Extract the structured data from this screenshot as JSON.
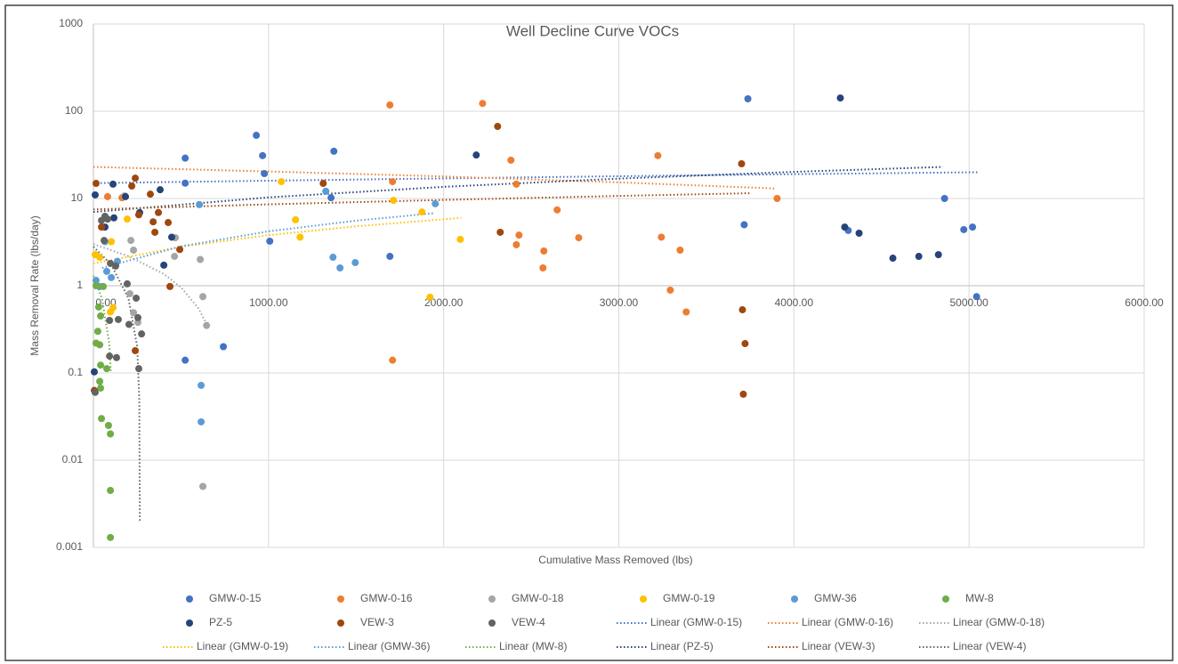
{
  "chart_data": {
    "type": "scatter",
    "title": "Well Decline Curve VOCs",
    "x_label": "Cumulative Mass Removed (lbs)",
    "y_label": "Mass Removal Rate (lbs/day)",
    "log_y": true,
    "grid": true,
    "legend": "bottom",
    "xlim": [
      0,
      6000
    ],
    "xticks": [
      {
        "value": 0,
        "label": "0.00"
      },
      {
        "value": 1000,
        "label": "1000.00"
      },
      {
        "value": 2000,
        "label": "2000.00"
      },
      {
        "value": 3000,
        "label": "3000.00"
      },
      {
        "value": 4000,
        "label": "4000.00"
      },
      {
        "value": 5000,
        "label": "5000.00"
      },
      {
        "value": 6000,
        "label": "6000.00"
      }
    ],
    "ylim": [
      0.001,
      1000
    ],
    "yticks": [
      0.001,
      0.01,
      0.1,
      1,
      10,
      100,
      1000
    ],
    "series": [
      {
        "name": "GMW-0-15",
        "color": "#4472c4",
        "x": [
          930,
          966,
          976,
          524,
          524,
          1373,
          1357,
          1007,
          1693,
          524,
          742,
          3737,
          3716,
          4310,
          4860,
          4970,
          5020,
          5043
        ],
        "values": [
          53,
          31,
          19.3,
          29,
          15,
          34.8,
          10.2,
          3.24,
          2.17,
          0.14,
          0.2,
          139,
          5,
          4.3,
          10,
          4.4,
          4.7,
          0.75
        ]
      },
      {
        "name": "GMW-0-16",
        "color": "#ed7d31",
        "x": [
          1693,
          2222,
          1708,
          2384,
          2415,
          2648,
          2430,
          2415,
          2567,
          2572,
          2771,
          3223,
          3243,
          3350,
          3294,
          3385,
          3904,
          1708,
          81,
          163
        ],
        "values": [
          118,
          123,
          15.6,
          27.5,
          14.6,
          7.4,
          3.8,
          2.95,
          1.6,
          2.5,
          3.55,
          31,
          3.6,
          2.56,
          0.89,
          0.5,
          10,
          0.14,
          10.5,
          10.2
        ]
      },
      {
        "name": "GMW-0-18",
        "color": "#a5a5a5",
        "x": [
          610,
          625,
          646,
          625,
          214,
          229,
          208,
          229,
          254,
          463,
          468,
          178
        ],
        "values": [
          2,
          0.75,
          0.35,
          0.005,
          3.3,
          2.56,
          0.81,
          0.49,
          0.38,
          2.17,
          3.55,
          10.7
        ]
      },
      {
        "name": "GMW-0-19",
        "color": "#ffc000",
        "x": [
          1073,
          1154,
          1180,
          1713,
          1876,
          2095,
          1922,
          102,
          193,
          10,
          36,
          112,
          97
        ],
        "values": [
          15.6,
          5.7,
          3.6,
          9.5,
          7,
          3.4,
          0.74,
          3.2,
          5.8,
          2.27,
          2.12,
          0.56,
          0.5
        ]
      },
      {
        "name": "GMW-36",
        "color": "#5b9bd5",
        "x": [
          605,
          1327,
          1952,
          1368,
          1495,
          1408,
          615,
          615,
          66,
          137,
          76,
          36,
          15,
          102
        ],
        "values": [
          8.5,
          12.1,
          8.7,
          2.12,
          1.84,
          1.6,
          0.072,
          0.0275,
          3.2,
          1.9,
          1.46,
          0.98,
          1.15,
          1.24
        ]
      },
      {
        "name": "MW-8",
        "color": "#70ad47",
        "x": [
          15,
          30,
          25,
          15,
          36,
          41,
          36,
          41,
          46,
          86,
          97,
          97,
          97,
          76,
          41,
          56
        ],
        "values": [
          1,
          0.57,
          0.3,
          0.22,
          0.21,
          0.123,
          0.08,
          0.067,
          0.03,
          0.025,
          0.02,
          0.0045,
          0.0013,
          0.112,
          0.45,
          0.98
        ]
      },
      {
        "name": "PZ-5",
        "color": "#264478",
        "x": [
          10,
          112,
          381,
          183,
          264,
          447,
          402,
          2186,
          4265,
          4290,
          4372,
          4565,
          4713,
          4825,
          5,
          117,
          66
        ],
        "values": [
          11,
          14.6,
          12.6,
          10.5,
          6.9,
          3.6,
          1.72,
          31.5,
          142,
          4.7,
          4,
          2.07,
          2.17,
          2.27,
          0.103,
          6,
          4.7
        ]
      },
      {
        "name": "VEW-3",
        "color": "#9e480e",
        "x": [
          15,
          239,
          219,
          325,
          371,
          259,
          341,
          427,
          351,
          493,
          437,
          239,
          5,
          1312,
          2308,
          2323,
          3701,
          3706,
          3721,
          3711,
          46
        ],
        "values": [
          14.9,
          17.1,
          13.9,
          11.2,
          6.9,
          6.5,
          5.4,
          5.3,
          4.1,
          2.6,
          0.98,
          0.18,
          0.063,
          14.9,
          67,
          4.1,
          25,
          0.53,
          0.217,
          0.057,
          4.7
        ]
      },
      {
        "name": "VEW-4",
        "color": "#636363",
        "x": [
          66,
          46,
          81,
          61,
          97,
          127,
          193,
          244,
          254,
          275,
          142,
          92,
          132,
          259,
          92,
          203,
          10
        ],
        "values": [
          6.25,
          5.6,
          5.8,
          3.3,
          1.8,
          1.68,
          1.05,
          0.72,
          0.43,
          0.28,
          0.41,
          0.156,
          0.15,
          0.112,
          0.4,
          0.36,
          0.06
        ]
      }
    ],
    "trendlines": [
      {
        "name": "Linear (GMW-0-15)",
        "color": "#4472c4",
        "x": [
          0,
          1000,
          2000,
          3000,
          4000,
          5050
        ],
        "values": [
          15,
          16,
          17,
          18,
          19,
          20
        ]
      },
      {
        "name": "Linear (GMW-0-16)",
        "color": "#ed7d31",
        "x": [
          0,
          1000,
          2000,
          3000,
          3900
        ],
        "values": [
          23,
          20.4,
          17.9,
          15.3,
          13
        ]
      },
      {
        "name": "Linear (GMW-0-18)",
        "color": "#a5a5a5",
        "x": [
          0,
          200,
          400,
          500,
          600,
          650
        ],
        "values": [
          3,
          2.18,
          1.37,
          0.96,
          0.55,
          0.35
        ]
      },
      {
        "name": "Linear (GMW-0-19)",
        "color": "#ffc000",
        "x": [
          0,
          500,
          1000,
          1500,
          2100
        ],
        "values": [
          1.8,
          2.8,
          3.8,
          4.8,
          6
        ]
      },
      {
        "name": "Linear (GMW-36)",
        "color": "#5b9bd5",
        "x": [
          50,
          500,
          1000,
          1500,
          1950
        ],
        "values": [
          1.6,
          2.83,
          4.2,
          5.57,
          6.8
        ]
      },
      {
        "name": "Linear (MW-8)",
        "color": "#70ad47",
        "x": [
          0,
          50,
          90,
          100
        ],
        "values": [
          1.3,
          0.7,
          0.22,
          0.1
        ]
      },
      {
        "name": "Linear (PZ-5)",
        "color": "#264478",
        "x": [
          0,
          1000,
          2000,
          3000,
          4000,
          4850
        ],
        "values": [
          7,
          10.3,
          13.6,
          16.9,
          20.2,
          23
        ]
      },
      {
        "name": "Linear (VEW-3)",
        "color": "#9e480e",
        "x": [
          0,
          1000,
          2000,
          3000,
          3750
        ],
        "values": [
          7.5,
          8.57,
          9.63,
          10.7,
          11.5
        ]
      },
      {
        "name": "Linear (VEW-4)",
        "color": "#636363",
        "x": [
          0,
          100,
          200,
          250,
          262,
          265
        ],
        "values": [
          2.8,
          1.76,
          0.72,
          0.2,
          0.05,
          0.002
        ]
      }
    ]
  }
}
